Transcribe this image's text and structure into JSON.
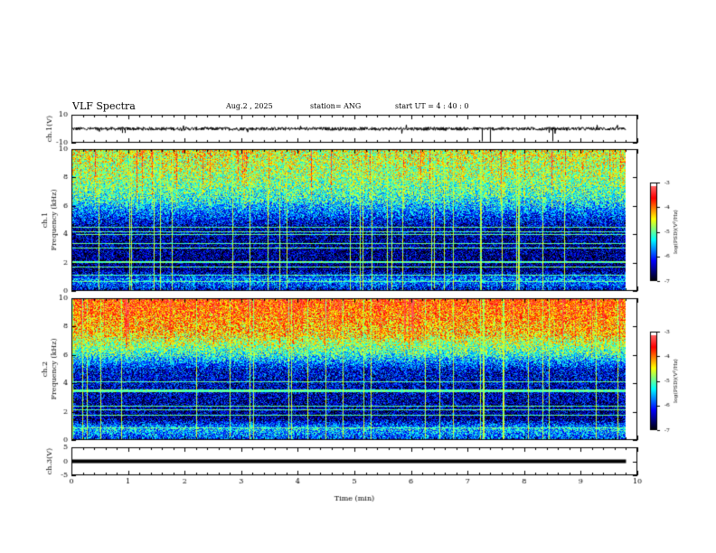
{
  "header": {
    "title": "VLF Spectra",
    "date": "Aug.2 , 2025",
    "station": "station= ANG",
    "start": "start UT = 4 : 40 : 0"
  },
  "colors": {
    "spectrogram_scale": [
      "#000000",
      "#00007f",
      "#0000ff",
      "#007fff",
      "#00ffff",
      "#7fff7f",
      "#ffff00",
      "#ff7f00",
      "#ff0000",
      "#ff5a5a",
      "#ffffff"
    ]
  },
  "chart_data": [
    {
      "type": "line",
      "name": "ch1-waveform",
      "ylabel": "ch.1(V)",
      "ylim": [
        -10,
        10
      ],
      "y_tick_labels": [
        "10",
        "-10"
      ],
      "xlim": [
        0,
        10
      ],
      "grid": false,
      "baseline": 0,
      "spikes_min": [
        {
          "t": 0.9,
          "v": -3
        },
        {
          "t": 0.95,
          "v": -3
        },
        {
          "t": 7.25,
          "v": -9
        },
        {
          "t": 7.4,
          "v": -9
        },
        {
          "t": 8.5,
          "v": -9
        }
      ]
    },
    {
      "type": "heatmap",
      "name": "ch1-spectrogram",
      "ylabel": "ch.1\nFrequency (kHz)",
      "xlim": [
        0,
        10
      ],
      "ylim": [
        0,
        10
      ],
      "y_tick_labels": [
        "0",
        "2",
        "4",
        "6",
        "8",
        "10"
      ],
      "data_end_min": 9.8,
      "colorbar": {
        "label": "log(PSD)(V²/Hz)",
        "range": [
          -7,
          -3
        ],
        "tick_labels": [
          "-7",
          "-6",
          "-5",
          "-4",
          "-3"
        ]
      },
      "level_by_freq_khz": [
        {
          "f": 0,
          "log_psd": -6.3
        },
        {
          "f": 0.8,
          "log_psd": -5.6
        },
        {
          "f": 1.5,
          "log_psd": -6.6
        },
        {
          "f": 4.5,
          "log_psd": -6.4
        },
        {
          "f": 5.2,
          "log_psd": -6.0
        },
        {
          "f": 6.5,
          "log_psd": -5.2
        },
        {
          "f": 8.0,
          "log_psd": -4.8
        },
        {
          "f": 10,
          "log_psd": -4.6
        }
      ]
    },
    {
      "type": "heatmap",
      "name": "ch2-spectrogram",
      "ylabel": "ch.2\nFrequency (kHz)",
      "xlim": [
        0,
        10
      ],
      "ylim": [
        0,
        10
      ],
      "y_tick_labels": [
        "0",
        "2",
        "4",
        "6",
        "8",
        "10"
      ],
      "data_end_min": 9.8,
      "colorbar": {
        "label": "log(PSD)(V²/Hz)",
        "range": [
          -7,
          -3
        ],
        "tick_labels": [
          "-7",
          "-6",
          "-5",
          "-4",
          "-3"
        ]
      },
      "level_by_freq_khz": [
        {
          "f": 0,
          "log_psd": -6.0
        },
        {
          "f": 0.8,
          "log_psd": -5.4
        },
        {
          "f": 1.5,
          "log_psd": -6.5
        },
        {
          "f": 5.0,
          "log_psd": -6.2
        },
        {
          "f": 6.0,
          "log_psd": -5.2
        },
        {
          "f": 7.5,
          "log_psd": -4.3
        },
        {
          "f": 10,
          "log_psd": -3.8
        }
      ]
    },
    {
      "type": "line",
      "name": "ch3-waveform",
      "ylabel": "ch.3(V)",
      "ylim": [
        -5,
        5
      ],
      "y_tick_labels": [
        "5",
        "0",
        "-5"
      ],
      "xlim": [
        0,
        10
      ],
      "xlabel": "Time (min)",
      "x_tick_labels": [
        "0",
        "1",
        "2",
        "3",
        "4",
        "5",
        "6",
        "7",
        "8",
        "9",
        "10"
      ],
      "baseline": 0,
      "data_end_min": 9.8
    }
  ]
}
